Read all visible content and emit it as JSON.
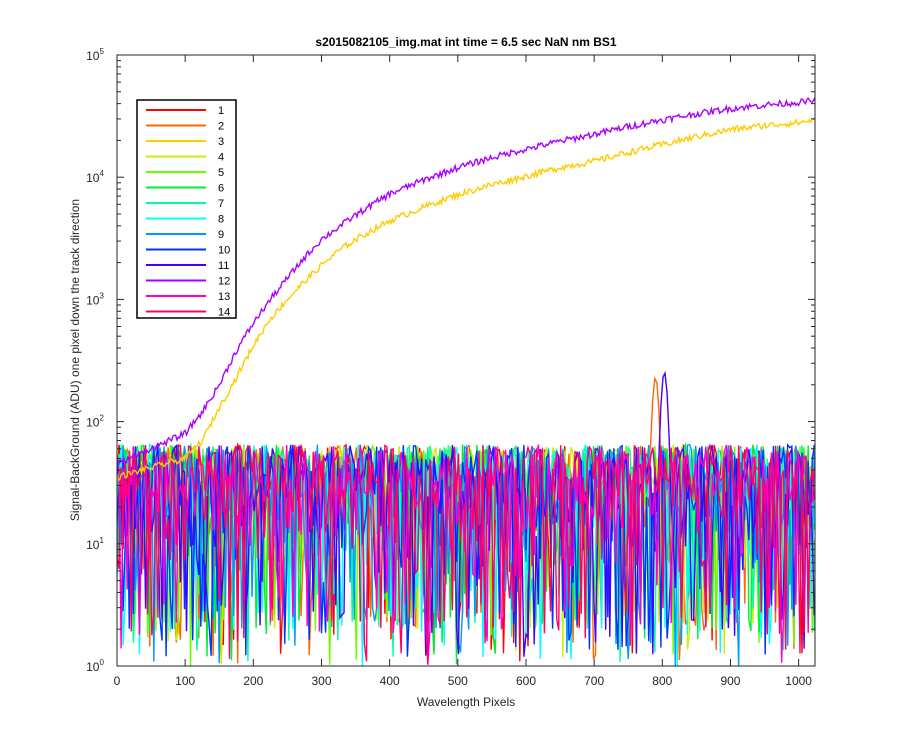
{
  "chart_data": {
    "type": "line",
    "title": "s2015082105_img.mat int time = 6.5 sec  NaN nm BS1",
    "xlabel": "Wavelength Pixels",
    "ylabel": "Signal-BackGround (ADU) one pixel down the track direction",
    "xlim": [
      0,
      1024
    ],
    "ylim": [
      1,
      100000
    ],
    "yscale": "log",
    "x_ticks": [
      0,
      100,
      200,
      300,
      400,
      500,
      600,
      700,
      800,
      900,
      1000
    ],
    "x_tick_labels": [
      "0",
      "100",
      "200",
      "300",
      "400",
      "500",
      "600",
      "700",
      "800",
      "900",
      "1000"
    ],
    "y_ticks": [
      1,
      10,
      100,
      1000,
      10000,
      100000
    ],
    "y_tick_labels": [
      {
        "base": "10",
        "exp": "0"
      },
      {
        "base": "10",
        "exp": "1"
      },
      {
        "base": "10",
        "exp": "2"
      },
      {
        "base": "10",
        "exp": "3"
      },
      {
        "base": "10",
        "exp": "4"
      },
      {
        "base": "10",
        "exp": "5"
      }
    ],
    "grid": false,
    "legend_position": "top-left",
    "series": [
      {
        "name": "1",
        "color": "#ff0000",
        "pattern": "noise"
      },
      {
        "name": "2",
        "color": "#ff6600",
        "pattern": "noise",
        "peaks": [
          {
            "x": 790,
            "y": 230
          }
        ]
      },
      {
        "name": "3",
        "color": "#ffcc00",
        "pattern": "signal",
        "points": [
          [
            0,
            35
          ],
          [
            50,
            42
          ],
          [
            100,
            50
          ],
          [
            125,
            70
          ],
          [
            150,
            130
          ],
          [
            175,
            230
          ],
          [
            200,
            420
          ],
          [
            225,
            700
          ],
          [
            250,
            1000
          ],
          [
            275,
            1400
          ],
          [
            300,
            1900
          ],
          [
            325,
            2500
          ],
          [
            350,
            3100
          ],
          [
            375,
            3700
          ],
          [
            400,
            4400
          ],
          [
            450,
            5700
          ],
          [
            500,
            7200
          ],
          [
            550,
            8700
          ],
          [
            600,
            10200
          ],
          [
            650,
            12000
          ],
          [
            700,
            13500
          ],
          [
            750,
            16000
          ],
          [
            800,
            18500
          ],
          [
            850,
            21500
          ],
          [
            900,
            24500
          ],
          [
            950,
            26500
          ],
          [
            1000,
            28000
          ],
          [
            1024,
            29500
          ]
        ]
      },
      {
        "name": "4",
        "color": "#ccee00",
        "pattern": "noise"
      },
      {
        "name": "5",
        "color": "#66ff00",
        "pattern": "noise"
      },
      {
        "name": "6",
        "color": "#00ee33",
        "pattern": "noise"
      },
      {
        "name": "7",
        "color": "#00ff99",
        "pattern": "noise"
      },
      {
        "name": "8",
        "color": "#00ffff",
        "pattern": "noise"
      },
      {
        "name": "9",
        "color": "#0099ff",
        "pattern": "noise"
      },
      {
        "name": "10",
        "color": "#0033ff",
        "pattern": "noise"
      },
      {
        "name": "11",
        "color": "#4400ff",
        "pattern": "noise",
        "peaks": [
          {
            "x": 803,
            "y": 255
          }
        ]
      },
      {
        "name": "12",
        "color": "#aa00ff",
        "pattern": "signal",
        "points": [
          [
            0,
            45
          ],
          [
            50,
            60
          ],
          [
            100,
            80
          ],
          [
            125,
            120
          ],
          [
            150,
            200
          ],
          [
            175,
            380
          ],
          [
            200,
            640
          ],
          [
            225,
            1000
          ],
          [
            250,
            1500
          ],
          [
            275,
            2200
          ],
          [
            300,
            3100
          ],
          [
            325,
            3900
          ],
          [
            350,
            4900
          ],
          [
            375,
            6000
          ],
          [
            400,
            7300
          ],
          [
            450,
            9500
          ],
          [
            500,
            12000
          ],
          [
            550,
            14500
          ],
          [
            600,
            17000
          ],
          [
            650,
            19700
          ],
          [
            700,
            22500
          ],
          [
            750,
            26000
          ],
          [
            800,
            29500
          ],
          [
            850,
            33000
          ],
          [
            900,
            36500
          ],
          [
            950,
            39000
          ],
          [
            1000,
            41000
          ],
          [
            1024,
            42500
          ]
        ]
      },
      {
        "name": "13",
        "color": "#ff00cc",
        "pattern": "noise"
      },
      {
        "name": "14",
        "color": "#ff0066",
        "pattern": "noise"
      }
    ]
  }
}
